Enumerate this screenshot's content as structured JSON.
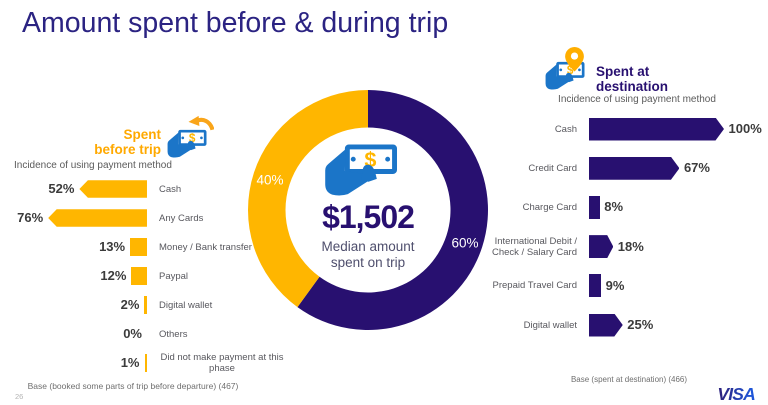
{
  "title": "Amount spent before & during trip",
  "page_number": "26",
  "brand": "VISA",
  "colors": {
    "gold": "#ffb600",
    "purple": "#281070",
    "title_indigo": "#2b2382",
    "icon_blue": "#1b75c8",
    "arrow_orange": "#f9a51a",
    "percent_text": "#3b3b3b",
    "category_text": "#58585e",
    "muted_text": "#5b5b5b"
  },
  "left_chart": {
    "header": "Spent\nbefore trip",
    "subtitle": "Incidence of using payment method",
    "icon": "money-in-hand-with-back-arrow",
    "items": [
      {
        "label": "Cash",
        "pct": 52,
        "pct_label": "52%"
      },
      {
        "label": "Any Cards",
        "pct": 76,
        "pct_label": "76%"
      },
      {
        "label": "Money / Bank transfer",
        "pct": 13,
        "pct_label": "13%"
      },
      {
        "label": "Paypal",
        "pct": 12,
        "pct_label": "12%"
      },
      {
        "label": "Digital wallet",
        "pct": 2,
        "pct_label": "2%"
      },
      {
        "label": "Others",
        "pct": 0,
        "pct_label": "0%"
      },
      {
        "label": "Did not make payment at this\nphase",
        "pct": 1,
        "pct_label": "1%",
        "align": "center"
      }
    ],
    "base_note": "Base (booked some parts of trip before departure) (467)"
  },
  "donut": {
    "amount": "$1,502",
    "caption": "Median amount\nspent on trip",
    "icon": "money-in-hand",
    "segments": [
      {
        "label": "40%",
        "value": 40,
        "color": "#ffb600"
      },
      {
        "label": "60%",
        "value": 60,
        "color": "#281070"
      }
    ]
  },
  "right_chart": {
    "header": "Spent at\ndestination",
    "subtitle": "Incidence of using payment method",
    "icon": "money-in-hand-with-location-pin",
    "items": [
      {
        "label": "Cash",
        "pct": 100,
        "pct_label": "100%"
      },
      {
        "label": "Credit Card",
        "pct": 67,
        "pct_label": "67%"
      },
      {
        "label": "Charge Card",
        "pct": 8,
        "pct_label": "8%"
      },
      {
        "label": "International Debit  /\nCheck / Salary Card",
        "pct": 18,
        "pct_label": "18%"
      },
      {
        "label": "Prepaid Travel Card",
        "pct": 9,
        "pct_label": "9%"
      },
      {
        "label": "Digital wallet",
        "pct": 25,
        "pct_label": "25%"
      }
    ],
    "base_note": "Base (spent at destination) (466)"
  },
  "chart_data": [
    {
      "type": "bar",
      "orientation": "horizontal",
      "title": "Spent before trip",
      "subtitle": "Incidence of using payment method",
      "categories": [
        "Cash",
        "Any Cards",
        "Money / Bank transfer",
        "Paypal",
        "Digital wallet",
        "Others",
        "Did not make payment at this phase"
      ],
      "values": [
        52,
        76,
        13,
        12,
        2,
        0,
        1
      ],
      "unit": "%",
      "bar_color": "#ffb600",
      "xlim": [
        0,
        100
      ],
      "note": "Base (booked some parts of trip before departure) (467)"
    },
    {
      "type": "pie",
      "title": "Median amount spent on trip",
      "center_label": "$1,502",
      "labels": [
        "Spent before trip",
        "Spent at destination"
      ],
      "values": [
        40,
        60
      ],
      "colors": [
        "#ffb600",
        "#281070"
      ],
      "donut": true
    },
    {
      "type": "bar",
      "orientation": "horizontal",
      "title": "Spent at destination",
      "subtitle": "Incidence of using payment method",
      "categories": [
        "Cash",
        "Credit Card",
        "Charge Card",
        "International Debit / Check / Salary Card",
        "Prepaid Travel Card",
        "Digital wallet"
      ],
      "values": [
        100,
        67,
        8,
        18,
        9,
        25
      ],
      "unit": "%",
      "bar_color": "#281070",
      "xlim": [
        0,
        100
      ],
      "note": "Base (spent at destination) (466)"
    }
  ]
}
